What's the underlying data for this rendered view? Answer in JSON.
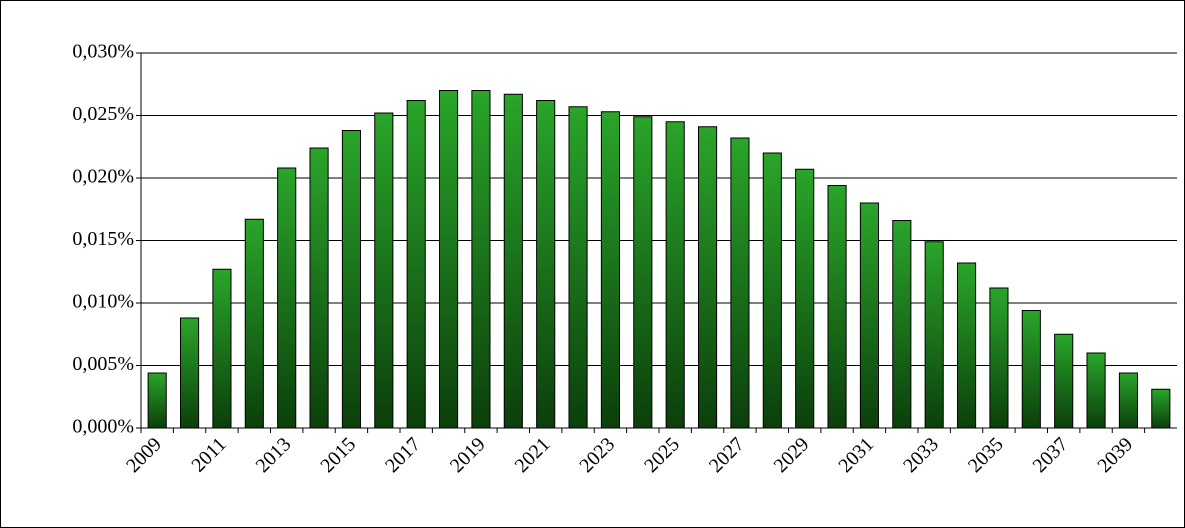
{
  "chart_data": {
    "type": "bar",
    "categories": [
      "2009",
      null,
      "2011",
      null,
      "2013",
      null,
      "2015",
      null,
      "2017",
      null,
      "2019",
      null,
      "2021",
      null,
      "2023",
      null,
      "2025",
      null,
      "2027",
      null,
      "2029",
      null,
      "2031",
      null,
      "2033",
      null,
      "2035",
      null,
      "2037",
      null,
      "2039",
      null
    ],
    "values": [
      0.0044,
      0.0088,
      0.0127,
      0.0167,
      0.0208,
      0.0224,
      0.0238,
      0.0252,
      0.0262,
      0.027,
      0.027,
      0.0267,
      0.0262,
      0.0257,
      0.0253,
      0.0249,
      0.0245,
      0.0241,
      0.0232,
      0.022,
      0.0207,
      0.0194,
      0.018,
      0.0166,
      0.0149,
      0.0132,
      0.0112,
      0.0094,
      0.0075,
      0.006,
      0.0044,
      0.0031
    ],
    "color": "#1f8a1f",
    "ylim": [
      0,
      0.03
    ],
    "yticks": [
      {
        "value": 0,
        "label": "0,000%"
      },
      {
        "value": 0.005,
        "label": "0,005%"
      },
      {
        "value": 0.01,
        "label": "0,010%"
      },
      {
        "value": 0.015,
        "label": "0,015%"
      },
      {
        "value": 0.02,
        "label": "0,020%"
      },
      {
        "value": 0.025,
        "label": "0,025%"
      },
      {
        "value": 0.03,
        "label": "0,030%"
      }
    ],
    "grid": true
  }
}
